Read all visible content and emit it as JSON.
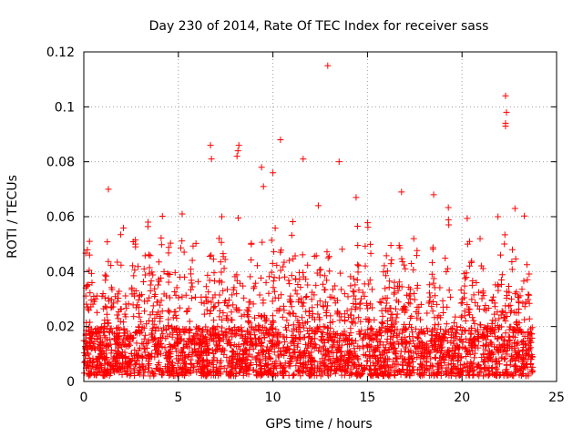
{
  "chart_data": {
    "type": "scatter",
    "title": "Day 230 of 2014, Rate Of TEC Index for receiver sass",
    "xlabel": "GPS time / hours",
    "ylabel": "ROTI / TECUs",
    "xlim": [
      0,
      25
    ],
    "ylim": [
      0,
      0.12
    ],
    "xticks": [
      0,
      5,
      10,
      15,
      20,
      25
    ],
    "xtick_labels": [
      "0",
      "5",
      "10",
      "15",
      "20",
      "25"
    ],
    "yticks": [
      0,
      0.02,
      0.04,
      0.06,
      0.08,
      0.1,
      0.12
    ],
    "ytick_labels": [
      "0",
      "0.02",
      "0.04",
      "0.06",
      "0.08",
      "0.1",
      "0.12"
    ],
    "grid": true,
    "marker": "+",
    "color": "#ff0000",
    "series": [
      {
        "name": "sass",
        "data_extent_hours": [
          0,
          23.75
        ],
        "baseline_range": [
          0.002,
          0.02
        ],
        "notable_points": [
          {
            "x": 12.9,
            "y": 0.115
          },
          {
            "x": 22.3,
            "y": 0.104
          },
          {
            "x": 22.35,
            "y": 0.098
          },
          {
            "x": 22.3,
            "y": 0.094
          },
          {
            "x": 22.3,
            "y": 0.093
          },
          {
            "x": 10.4,
            "y": 0.088
          },
          {
            "x": 6.7,
            "y": 0.086
          },
          {
            "x": 8.2,
            "y": 0.086
          },
          {
            "x": 8.15,
            "y": 0.084
          },
          {
            "x": 8.1,
            "y": 0.082
          },
          {
            "x": 6.75,
            "y": 0.081
          },
          {
            "x": 11.6,
            "y": 0.081
          },
          {
            "x": 13.5,
            "y": 0.08
          },
          {
            "x": 9.4,
            "y": 0.078
          },
          {
            "x": 10.0,
            "y": 0.076
          },
          {
            "x": 9.5,
            "y": 0.071
          },
          {
            "x": 1.3,
            "y": 0.07
          },
          {
            "x": 16.8,
            "y": 0.069
          },
          {
            "x": 18.5,
            "y": 0.068
          },
          {
            "x": 14.4,
            "y": 0.067
          },
          {
            "x": 22.8,
            "y": 0.063
          },
          {
            "x": 21.9,
            "y": 0.06
          },
          {
            "x": 0.3,
            "y": 0.051
          },
          {
            "x": 3.4,
            "y": 0.058
          },
          {
            "x": 5.2,
            "y": 0.061
          },
          {
            "x": 7.3,
            "y": 0.06
          },
          {
            "x": 12.4,
            "y": 0.064
          },
          {
            "x": 19.3,
            "y": 0.057
          },
          {
            "x": 20.3,
            "y": 0.05
          }
        ],
        "spike_hours": [
          0.3,
          1.3,
          2.0,
          2.7,
          3.4,
          4.1,
          4.6,
          5.2,
          5.8,
          6.7,
          7.3,
          8.2,
          8.9,
          9.4,
          10.0,
          10.4,
          11.1,
          11.6,
          12.4,
          12.9,
          13.5,
          14.4,
          15.0,
          16.1,
          16.8,
          17.5,
          18.5,
          19.3,
          20.3,
          21.0,
          21.9,
          22.3,
          22.8,
          23.3
        ]
      }
    ]
  }
}
